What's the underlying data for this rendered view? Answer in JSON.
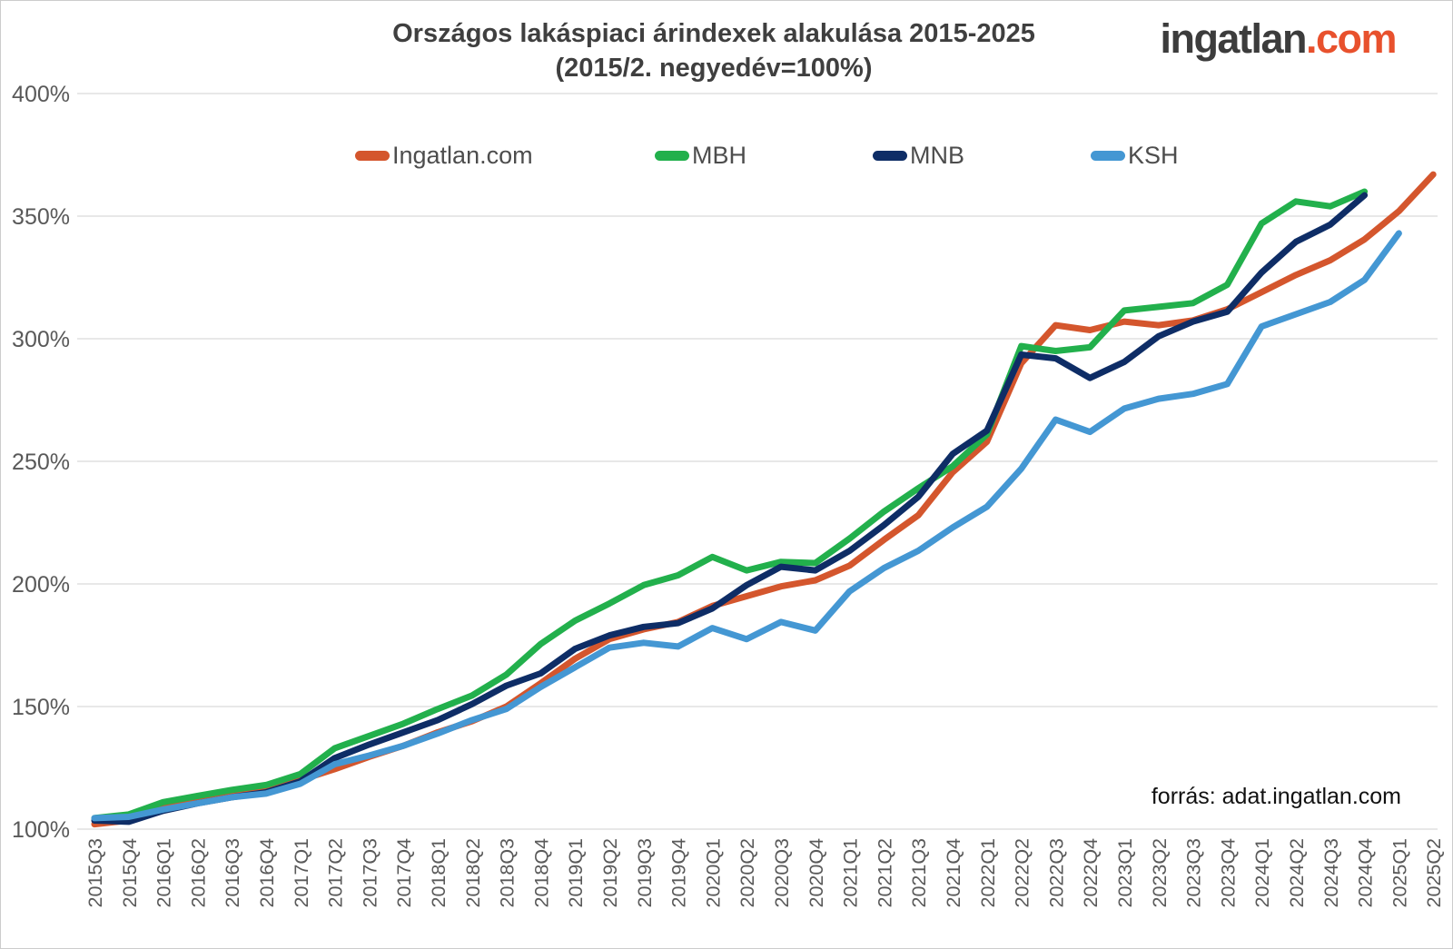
{
  "page": {
    "logo": {
      "part1": "ingatlan",
      "part2": ".com"
    },
    "source_text": "forrás: adat.ingatlan.com"
  },
  "chart_data": {
    "type": "line",
    "title": "Országos lakáspiaci árindexek alakulása 2015-2025",
    "subtitle": "(2015/2. negyedév=100%)",
    "grid": true,
    "legend_position": "top",
    "x_categories": [
      "2015Q3",
      "2015Q4",
      "2016Q1",
      "2016Q2",
      "2016Q3",
      "2016Q4",
      "2017Q1",
      "2017Q2",
      "2017Q3",
      "2017Q4",
      "2018Q1",
      "2018Q2",
      "2018Q3",
      "2018Q4",
      "2019Q1",
      "2019Q2",
      "2019Q3",
      "2019Q4",
      "2020Q1",
      "2020Q2",
      "2020Q3",
      "2020Q4",
      "2021Q1",
      "2021Q2",
      "2021Q3",
      "2021Q4",
      "2022Q1",
      "2022Q2",
      "2022Q3",
      "2022Q4",
      "2023Q1",
      "2023Q2",
      "2023Q3",
      "2023Q4",
      "2024Q1",
      "2024Q2",
      "2024Q3",
      "2024Q4",
      "2025Q1",
      "2025Q2"
    ],
    "y_axis": {
      "min": 100,
      "max": 400,
      "step": 50,
      "tick_suffix": "%",
      "labels": [
        "100%",
        "150%",
        "200%",
        "250%",
        "300%",
        "350%",
        "400%"
      ]
    },
    "axis_text_color": "#595959",
    "gridline_color": "#d9d9d9",
    "series": [
      {
        "name": "Ingatlan.com",
        "color": "#d4562d",
        "values": [
          102,
          103.5,
          108.5,
          111,
          113.5,
          116,
          120,
          124.5,
          129.5,
          134,
          139.5,
          144,
          150,
          159.5,
          169.5,
          177.5,
          181.5,
          184.5,
          191,
          195,
          199,
          201.5,
          207.5,
          218,
          228,
          245.5,
          258,
          290,
          305.5,
          303.5,
          307,
          305.5,
          307.5,
          312,
          319,
          326,
          332,
          340.5,
          352,
          367
        ]
      },
      {
        "name": "MBH",
        "color": "#22b04c",
        "values": [
          104.5,
          106,
          111,
          113.5,
          116,
          118,
          122.5,
          133,
          138,
          143,
          149,
          154.5,
          163,
          175.5,
          185,
          192,
          199.5,
          203.5,
          211,
          205.5,
          209,
          208.5,
          218.5,
          229.5,
          239,
          248,
          261,
          297,
          295,
          296.5,
          311.5,
          313,
          314.5,
          322,
          347,
          356,
          354,
          360,
          null,
          null
        ]
      },
      {
        "name": "MNB",
        "color": "#0e2d66",
        "values": [
          103.5,
          103,
          107.5,
          110.5,
          113,
          115,
          119.5,
          129,
          134.5,
          139.5,
          144.5,
          151,
          158.5,
          163.5,
          173.5,
          179,
          182.5,
          184,
          190,
          199.5,
          207,
          205.5,
          213.5,
          224,
          235.5,
          253,
          262.5,
          293.5,
          292,
          284,
          290.5,
          301,
          307,
          311,
          327,
          339.5,
          346.5,
          358.5,
          null,
          null
        ]
      },
      {
        "name": "KSH",
        "color": "#4497d3",
        "values": [
          104.5,
          105,
          108,
          110.5,
          113,
          114.5,
          118.5,
          126.5,
          130,
          134,
          139,
          144.5,
          149,
          158,
          166,
          174,
          176,
          174.5,
          182,
          177.5,
          184.5,
          181,
          197,
          206.5,
          213.5,
          223,
          231.5,
          247,
          267,
          262,
          271.5,
          275.5,
          277.5,
          281.5,
          305,
          310,
          315,
          324,
          343,
          null
        ]
      }
    ]
  }
}
